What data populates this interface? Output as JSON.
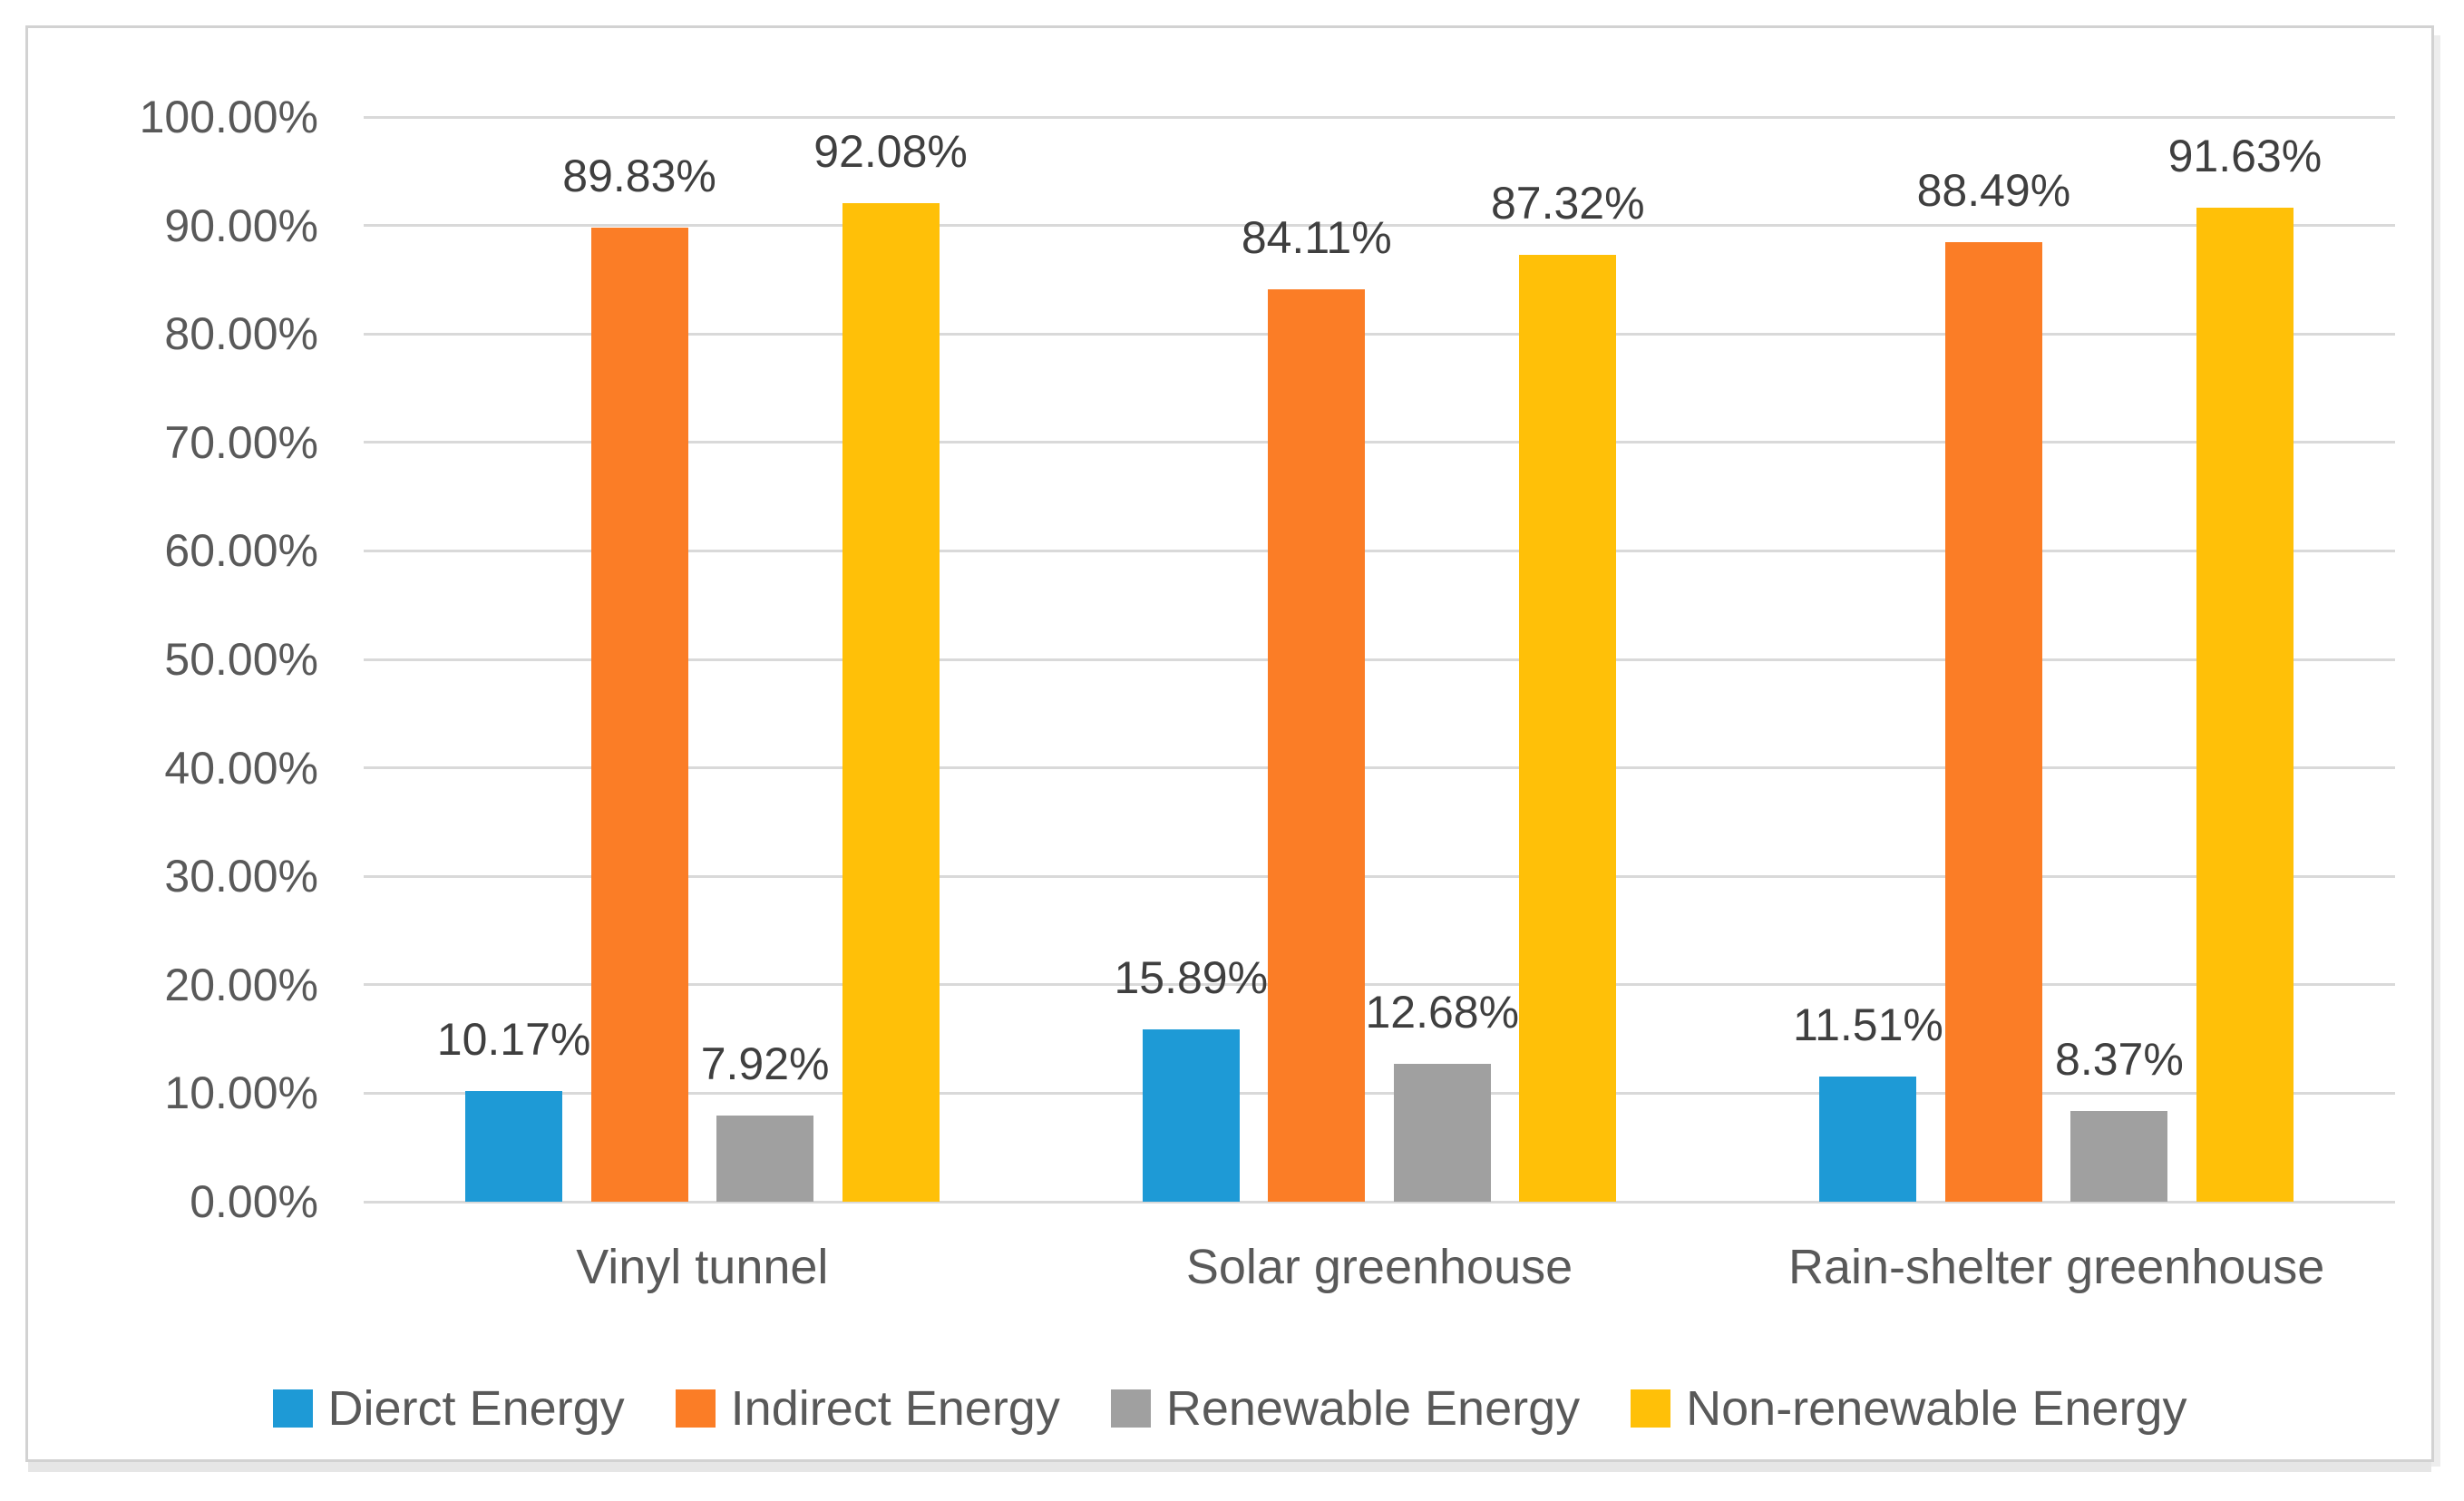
{
  "chart_data": {
    "type": "bar",
    "title": "",
    "categories": [
      "Vinyl tunnel",
      "Solar greenhouse",
      "Rain-shelter greenhouse"
    ],
    "series": [
      {
        "name": "Dierct Energy",
        "color": "#1e9ad6",
        "values": [
          10.17,
          15.89,
          11.51
        ],
        "labels": [
          "10.17%",
          "15.89%",
          "11.51%"
        ]
      },
      {
        "name": "Indirect Energy",
        "color": "#fb7d26",
        "values": [
          89.83,
          84.11,
          88.49
        ],
        "labels": [
          "89.83%",
          "84.11%",
          "88.49%"
        ]
      },
      {
        "name": "Renewable Energy",
        "color": "#a0a0a0",
        "values": [
          7.92,
          12.68,
          8.37
        ],
        "labels": [
          "7.92%",
          "12.68%",
          "8.37%"
        ]
      },
      {
        "name": "Non-renewable Energy",
        "color": "#ffc008",
        "values": [
          92.08,
          87.32,
          91.63
        ],
        "labels": [
          "92.08%",
          "87.32%",
          "91.63%"
        ]
      }
    ],
    "y_axis": {
      "min": 0,
      "max": 100,
      "ticks": [
        "0.00%",
        "10.00%",
        "20.00%",
        "30.00%",
        "40.00%",
        "50.00%",
        "60.00%",
        "70.00%",
        "80.00%",
        "90.00%",
        "100.00%"
      ]
    },
    "grid": true,
    "gridline_color": "#d9d9d9",
    "legend_position": "bottom",
    "plot_background": "#ffffff",
    "tick_color": "#595959",
    "data_label_color": "#3f3f3f"
  }
}
